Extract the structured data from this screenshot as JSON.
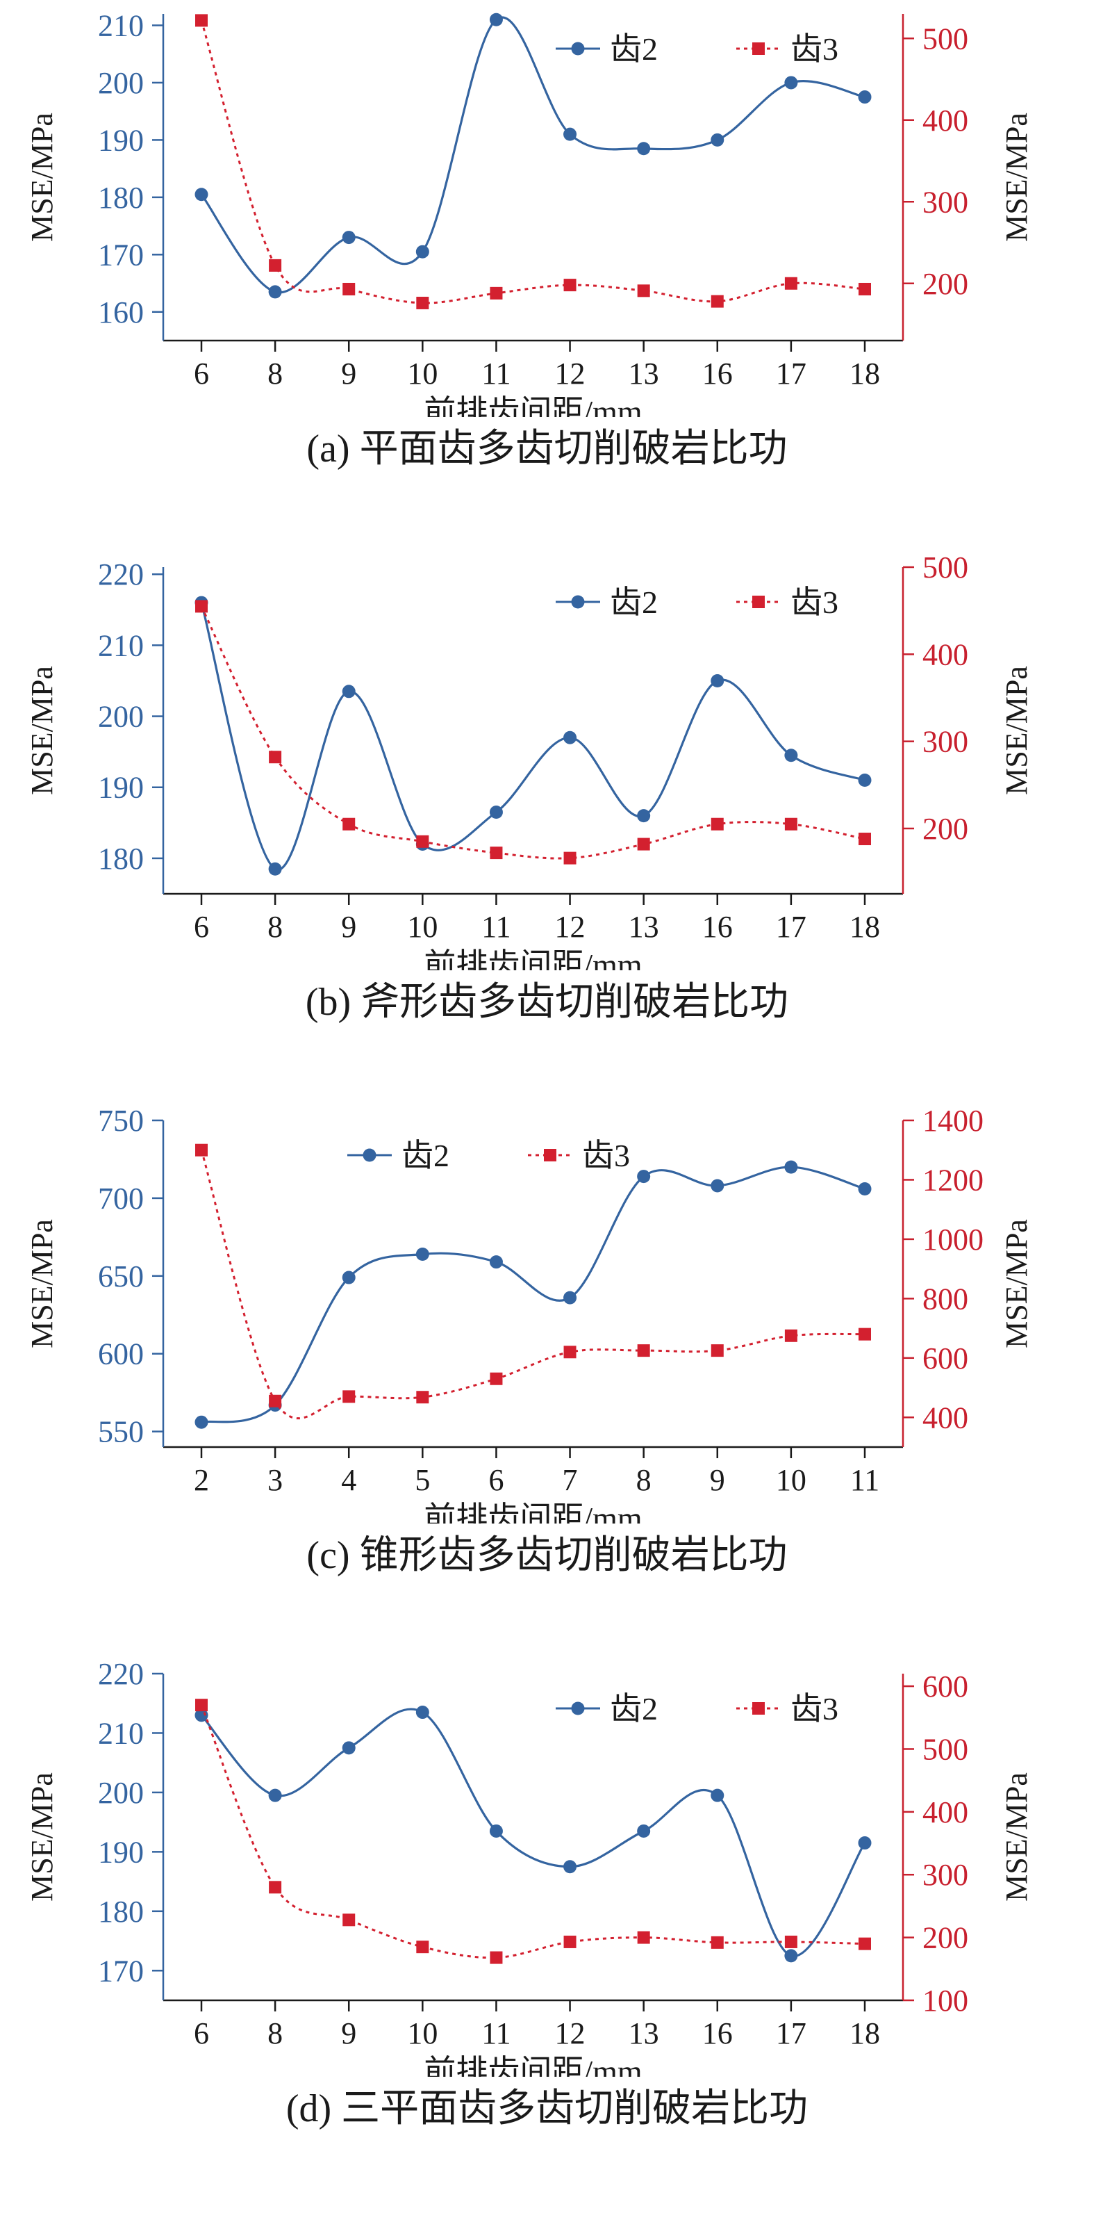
{
  "chart_data": [
    {
      "type": "line",
      "caption": "(a) 平面齿多齿切削破岩比功",
      "xlabel": "前排齿间距/mm",
      "ylabel_left": "MSE/MPa",
      "ylabel_right": "MSE/MPa",
      "categories": [
        "6",
        "8",
        "9",
        "10",
        "11",
        "12",
        "13",
        "16",
        "17",
        "18"
      ],
      "ylim_left": [
        155,
        212
      ],
      "yticks_left": [
        160,
        170,
        180,
        190,
        200,
        210
      ],
      "ylim_right": [
        130,
        530
      ],
      "yticks_right": [
        200,
        300,
        400,
        500
      ],
      "legend_position": "top-right",
      "series": [
        {
          "name": "齿2",
          "axis": "left",
          "color": "#3464a0",
          "style": "solid-circle",
          "values": [
            180.5,
            163.5,
            173,
            170.5,
            211,
            191,
            188.5,
            190,
            200,
            197.5
          ]
        },
        {
          "name": "齿3",
          "axis": "right",
          "color": "#d3202f",
          "style": "dotted-square",
          "values": [
            522,
            222,
            193,
            176,
            188,
            198,
            191,
            178,
            200,
            193
          ]
        }
      ]
    },
    {
      "type": "line",
      "caption": "(b) 斧形齿多齿切削破岩比功",
      "xlabel": "前排齿间距/mm",
      "ylabel_left": "MSE/MPa",
      "ylabel_right": "MSE/MPa",
      "categories": [
        "6",
        "8",
        "9",
        "10",
        "11",
        "12",
        "13",
        "16",
        "17",
        "18"
      ],
      "ylim_left": [
        175,
        221
      ],
      "yticks_left": [
        180,
        190,
        200,
        210,
        220
      ],
      "ylim_right": [
        125,
        500
      ],
      "yticks_right": [
        200,
        300,
        400,
        500
      ],
      "legend_position": "top-right",
      "series": [
        {
          "name": "齿2",
          "axis": "left",
          "color": "#3464a0",
          "style": "solid-circle",
          "values": [
            216,
            178.5,
            203.5,
            182,
            186.5,
            197,
            186,
            205,
            194.5,
            191
          ]
        },
        {
          "name": "齿3",
          "axis": "right",
          "color": "#d3202f",
          "style": "dotted-square",
          "values": [
            455,
            282,
            205,
            185,
            172,
            166,
            182,
            205,
            205,
            188
          ]
        }
      ]
    },
    {
      "type": "line",
      "caption": "(c) 锥形齿多齿切削破岩比功",
      "xlabel": "前排齿间距/mm",
      "ylabel_left": "MSE/MPa",
      "ylabel_right": "MSE/MPa",
      "categories": [
        "2",
        "3",
        "4",
        "5",
        "6",
        "7",
        "8",
        "9",
        "10",
        "11"
      ],
      "ylim_left": [
        540,
        750
      ],
      "yticks_left": [
        550,
        600,
        650,
        700,
        750
      ],
      "ylim_right": [
        300,
        1400
      ],
      "yticks_right": [
        400,
        600,
        800,
        1000,
        1200,
        1400
      ],
      "legend_position": "top-center",
      "series": [
        {
          "name": "齿2",
          "axis": "left",
          "color": "#3464a0",
          "style": "solid-circle",
          "values": [
            556,
            567,
            649,
            664,
            659,
            636,
            714,
            708,
            720,
            706
          ]
        },
        {
          "name": "齿3",
          "axis": "right",
          "color": "#d3202f",
          "style": "dotted-square",
          "values": [
            1300,
            455,
            470,
            468,
            530,
            620,
            625,
            625,
            675,
            680
          ]
        }
      ]
    },
    {
      "type": "line",
      "caption": "(d) 三平面齿多齿切削破岩比功",
      "xlabel": "前排齿间距/mm",
      "ylabel_left": "MSE/MPa",
      "ylabel_right": "MSE/MPa",
      "categories": [
        "6",
        "8",
        "9",
        "10",
        "11",
        "12",
        "13",
        "16",
        "17",
        "18"
      ],
      "ylim_left": [
        165,
        220
      ],
      "yticks_left": [
        170,
        180,
        190,
        200,
        210,
        220
      ],
      "ylim_right": [
        100,
        620
      ],
      "yticks_right": [
        100,
        200,
        300,
        400,
        500,
        600
      ],
      "legend_position": "top-right",
      "series": [
        {
          "name": "齿2",
          "axis": "left",
          "color": "#3464a0",
          "style": "solid-circle",
          "values": [
            213,
            199.5,
            207.5,
            213.5,
            193.5,
            187.5,
            193.5,
            199.5,
            172.5,
            191.5
          ]
        },
        {
          "name": "齿3",
          "axis": "right",
          "color": "#d3202f",
          "style": "dotted-square",
          "values": [
            570,
            280,
            228,
            185,
            168,
            193,
            200,
            192,
            193,
            190
          ]
        }
      ]
    }
  ]
}
